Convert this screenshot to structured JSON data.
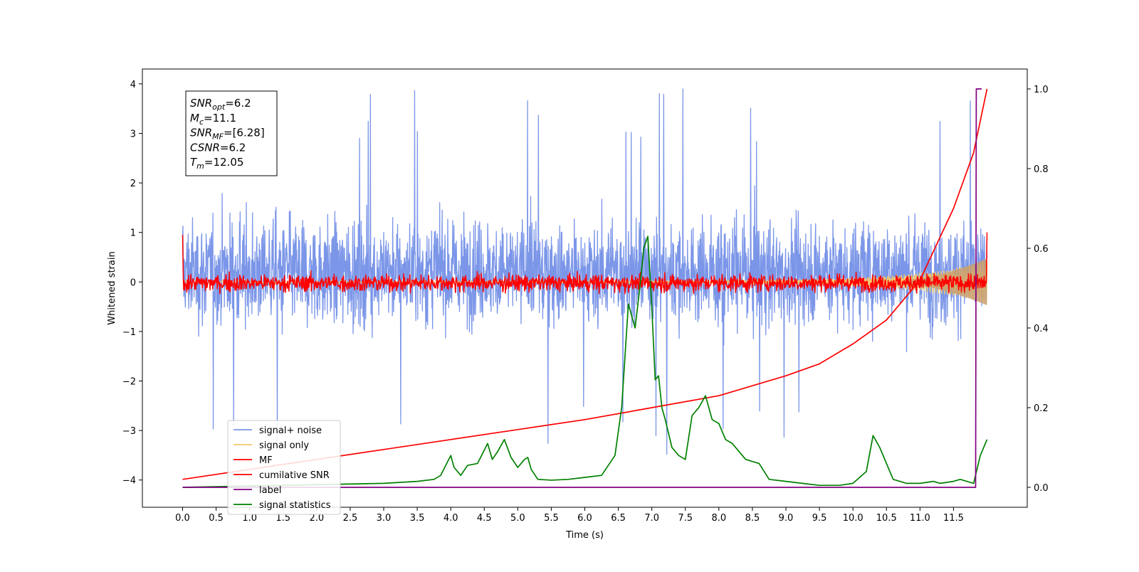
{
  "chart_data": {
    "type": "line",
    "xlabel": "Time (s)",
    "ylabel": "Whitened strain",
    "xlim": [
      -0.6,
      12.6
    ],
    "ylim": [
      -4.55,
      4.3
    ],
    "y2lim": [
      -0.05,
      1.05
    ],
    "x_ticks": [
      "0.0",
      "0.5",
      "1.0",
      "1.5",
      "2.0",
      "2.5",
      "3.0",
      "3.5",
      "4.0",
      "4.5",
      "5.0",
      "5.5",
      "6.0",
      "6.5",
      "7.0",
      "7.5",
      "8.0",
      "8.5",
      "9.0",
      "9.5",
      "10.0",
      "10.5",
      "11.0",
      "11.5"
    ],
    "y_ticks": [
      "4",
      "3",
      "2",
      "1",
      "0",
      "−1",
      "−2",
      "−3",
      "−4"
    ],
    "y2_ticks": [
      "1.0",
      "0.8",
      "0.6",
      "0.4",
      "0.2",
      "0.0"
    ],
    "legend_location": "lower-left",
    "annotation": [
      {
        "name": "SNR",
        "sub": "opt",
        "value": "=6.2"
      },
      {
        "name": "M",
        "sub": "c",
        "value": "=11.1"
      },
      {
        "name": "SNR",
        "sub": "MF",
        "value": "=[6.28]"
      },
      {
        "name": "CSNR",
        "sub": "",
        "value": "=6.2"
      },
      {
        "name": "T",
        "sub": "m",
        "value": "=12.05"
      }
    ],
    "series": [
      {
        "name": "signal+ noise",
        "color": "#7b96e8",
        "axis": "left",
        "description": "whitened noise band spanning roughly -2 to 2.5 with spikes to about 3.9"
      },
      {
        "name": "signal only",
        "color": "#f5c96a",
        "axis": "left",
        "description": "chirp signal growing in amplitude toward t = 12"
      },
      {
        "name": "MF",
        "color": "#ff0000",
        "axis": "left",
        "description": "matched filter output near 0 with fluctuations of about +-0.3"
      },
      {
        "name": "cumilative SNR",
        "color": "#ff0000",
        "axis": "right",
        "x": [
          0.0,
          1.0,
          2.0,
          3.0,
          4.0,
          5.0,
          6.0,
          7.0,
          8.0,
          9.0,
          9.5,
          10.0,
          10.5,
          11.0,
          11.5,
          11.8,
          12.0
        ],
        "values": [
          0.02,
          0.045,
          0.07,
          0.095,
          0.12,
          0.145,
          0.17,
          0.2,
          0.23,
          0.28,
          0.31,
          0.36,
          0.42,
          0.52,
          0.7,
          0.84,
          1.0
        ]
      },
      {
        "name": "label",
        "color": "#800080",
        "axis": "right",
        "x": [
          0.0,
          11.83,
          11.84,
          11.92
        ],
        "values": [
          0.0,
          0.0,
          1.0,
          1.0
        ]
      },
      {
        "name": "signal statistics",
        "color": "#008000",
        "axis": "right",
        "x": [
          0.0,
          3.0,
          3.5,
          3.75,
          3.85,
          4.0,
          4.05,
          4.15,
          4.25,
          4.4,
          4.55,
          4.62,
          4.7,
          4.8,
          4.9,
          5.0,
          5.1,
          5.15,
          5.2,
          5.3,
          5.5,
          5.75,
          6.0,
          6.25,
          6.45,
          6.55,
          6.65,
          6.75,
          6.82,
          6.88,
          6.94,
          7.0,
          7.05,
          7.1,
          7.15,
          7.2,
          7.3,
          7.4,
          7.5,
          7.6,
          7.7,
          7.8,
          7.9,
          8.0,
          8.1,
          8.2,
          8.4,
          8.6,
          8.75,
          9.0,
          9.5,
          9.8,
          10.0,
          10.2,
          10.3,
          10.4,
          10.5,
          10.6,
          10.8,
          11.0,
          11.2,
          11.3,
          11.5,
          11.6,
          11.8,
          11.9,
          12.0
        ],
        "values": [
          0.0,
          0.01,
          0.015,
          0.02,
          0.03,
          0.08,
          0.05,
          0.03,
          0.055,
          0.06,
          0.11,
          0.07,
          0.09,
          0.12,
          0.075,
          0.05,
          0.07,
          0.075,
          0.045,
          0.02,
          0.018,
          0.02,
          0.025,
          0.03,
          0.08,
          0.2,
          0.46,
          0.4,
          0.5,
          0.6,
          0.63,
          0.45,
          0.27,
          0.28,
          0.2,
          0.17,
          0.1,
          0.08,
          0.07,
          0.18,
          0.2,
          0.23,
          0.17,
          0.16,
          0.12,
          0.11,
          0.07,
          0.06,
          0.02,
          0.015,
          0.005,
          0.005,
          0.01,
          0.04,
          0.13,
          0.1,
          0.06,
          0.02,
          0.01,
          0.01,
          0.015,
          0.01,
          0.015,
          0.02,
          0.01,
          0.08,
          0.12
        ]
      }
    ]
  }
}
